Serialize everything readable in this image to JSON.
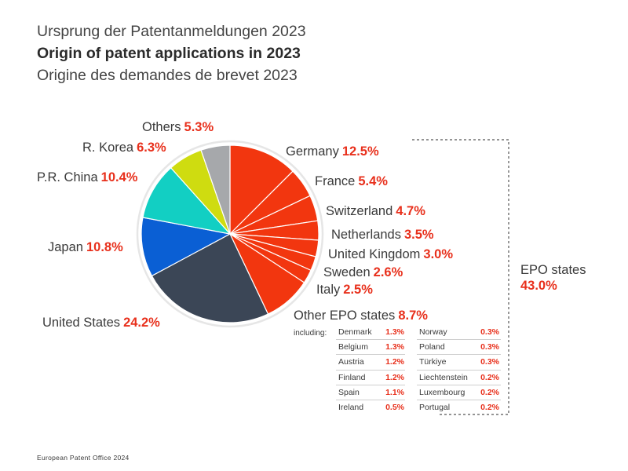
{
  "titles": {
    "de": "Ursprung der Patentanmeldungen 2023",
    "en": "Origin of patent applications in 2023",
    "fr": "Origine des demandes de brevet 2023"
  },
  "chart_data": {
    "type": "pie",
    "slices": [
      {
        "label": "Germany",
        "value": 12.5,
        "display": "12.5%",
        "color": "#f2360f"
      },
      {
        "label": "France",
        "value": 5.4,
        "display": "5.4%",
        "color": "#f2360f"
      },
      {
        "label": "Switzerland",
        "value": 4.7,
        "display": "4.7%",
        "color": "#f2360f"
      },
      {
        "label": "Netherlands",
        "value": 3.5,
        "display": "3.5%",
        "color": "#f2360f"
      },
      {
        "label": "United Kingdom",
        "value": 3.0,
        "display": "3.0%",
        "color": "#f2360f"
      },
      {
        "label": "Sweden",
        "value": 2.6,
        "display": "2.6%",
        "color": "#f2360f"
      },
      {
        "label": "Italy",
        "value": 2.5,
        "display": "2.5%",
        "color": "#f2360f"
      },
      {
        "label": "Other EPO states",
        "value": 8.7,
        "display": "8.7%",
        "color": "#f2360f"
      },
      {
        "label": "United States",
        "value": 24.2,
        "display": "24.2%",
        "color": "#3b4656"
      },
      {
        "label": "Japan",
        "value": 10.8,
        "display": "10.8%",
        "color": "#0a5fd4"
      },
      {
        "label": "P.R. China",
        "value": 10.4,
        "display": "10.4%",
        "color": "#12cfc3"
      },
      {
        "label": "R. Korea",
        "value": 6.3,
        "display": "6.3%",
        "color": "#cfdc10"
      },
      {
        "label": "Others",
        "value": 5.3,
        "display": "5.3%",
        "color": "#a6a8ab"
      }
    ],
    "group": {
      "label": "EPO states",
      "value": 43.0,
      "display": "43.0%"
    },
    "including_label": "including:",
    "other_epo_breakdown": [
      {
        "label": "Denmark",
        "value": "1.3%"
      },
      {
        "label": "Belgium",
        "value": "1.3%"
      },
      {
        "label": "Austria",
        "value": "1.2%"
      },
      {
        "label": "Finland",
        "value": "1.2%"
      },
      {
        "label": "Spain",
        "value": "1.1%"
      },
      {
        "label": "Ireland",
        "value": "0.5%"
      },
      {
        "label": "Norway",
        "value": "0.3%"
      },
      {
        "label": "Poland",
        "value": "0.3%"
      },
      {
        "label": "Türkiye",
        "value": "0.3%"
      },
      {
        "label": "Liechtenstein",
        "value": "0.2%"
      },
      {
        "label": "Luxembourg",
        "value": "0.2%"
      },
      {
        "label": "Portugal",
        "value": "0.2%"
      }
    ]
  },
  "footer": "European Patent Office 2024"
}
